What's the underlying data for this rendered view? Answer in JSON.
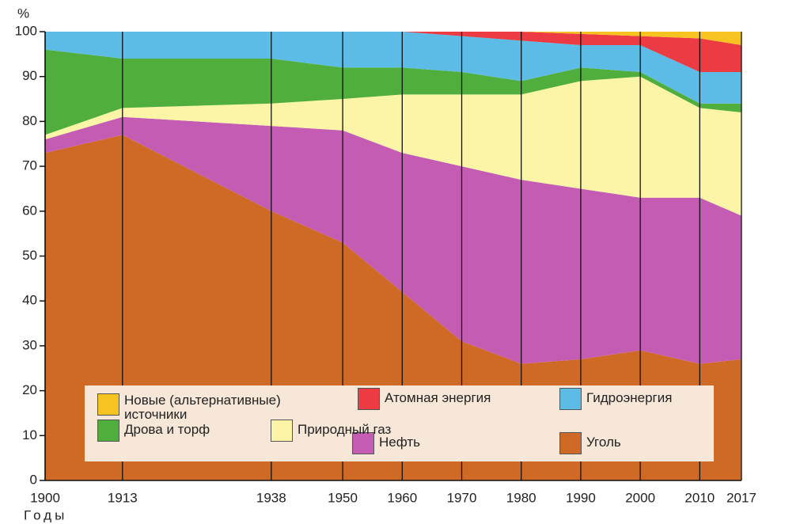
{
  "chart_data": {
    "type": "stacked_area",
    "y_label": "%",
    "x_label": "Годы",
    "x": [
      1900,
      1913,
      1938,
      1950,
      1960,
      1970,
      1980,
      1990,
      2000,
      2010,
      2017
    ],
    "xlim": [
      1900,
      2017
    ],
    "xticks": [
      1900,
      1913,
      1938,
      1950,
      1960,
      1970,
      1980,
      1990,
      2000,
      2010,
      2017
    ],
    "ylim": [
      0,
      100
    ],
    "yticks": [
      0,
      10,
      20,
      30,
      40,
      50,
      60,
      70,
      80,
      90,
      100
    ],
    "grid": "x",
    "series": [
      {
        "name": "Уголь",
        "color": "#cf6a26",
        "values": [
          73,
          77,
          60,
          53,
          42,
          31,
          26,
          27,
          29,
          26,
          27
        ]
      },
      {
        "name": "Нефть",
        "color": "#c45cb4",
        "values": [
          3,
          4,
          19,
          25,
          31,
          39,
          41,
          38,
          34,
          37,
          32
        ]
      },
      {
        "name": "Природный газ",
        "color": "#fcf5a8",
        "values": [
          1,
          2,
          5,
          7,
          13,
          16,
          19,
          24,
          27,
          20,
          23
        ]
      },
      {
        "name": "Дрова и торф",
        "color": "#4fae3c",
        "values": [
          19,
          11,
          10,
          7,
          6,
          5,
          3,
          3,
          1,
          1,
          2
        ]
      },
      {
        "name": "Гидроэнергия",
        "color": "#5cbce6",
        "values": [
          4,
          6,
          6,
          8,
          8,
          8,
          9,
          5,
          6,
          7,
          7
        ]
      },
      {
        "name": "Атомная энергия",
        "color": "#ec3b42",
        "values": [
          0,
          0,
          0,
          0,
          0,
          1,
          2,
          2.5,
          2,
          7.5,
          6
        ]
      },
      {
        "name": "Новые (альтернативные) источники",
        "color": "#f6c321",
        "values": [
          0,
          0,
          0,
          0,
          0,
          0,
          0,
          0.5,
          1,
          1.5,
          3
        ]
      }
    ]
  }
}
